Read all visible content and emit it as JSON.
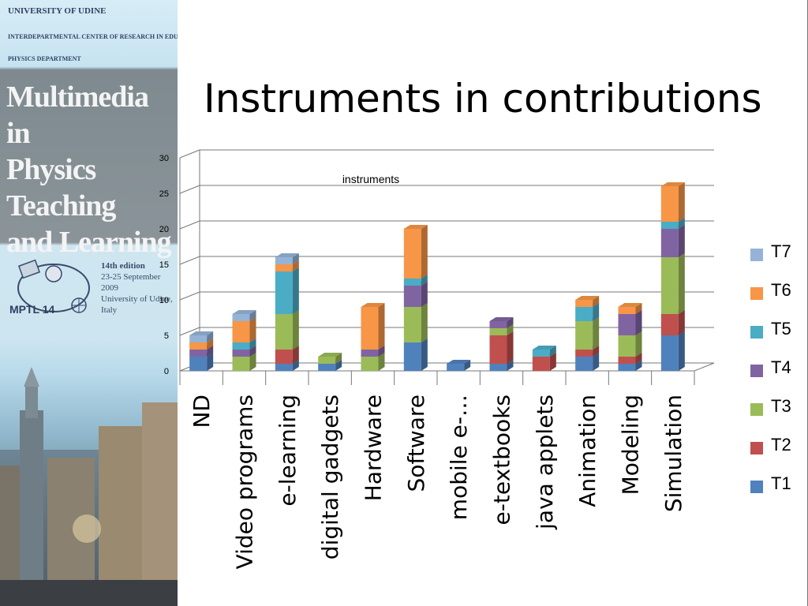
{
  "banner": {
    "university": "UNIVERSITY OF UDINE",
    "center": "INTERDEPARTMENTAL CENTER OF RESEARCH IN EDUCATION",
    "department": "PHYSICS DEPARTMENT",
    "title_lines": [
      "Multimedia in",
      "Physics Teaching",
      "and Learning"
    ],
    "logo_text": "MPTL 14",
    "edition": "14th edition",
    "dates": "23-25 September 2009",
    "place": "University of Udine, Italy"
  },
  "slide_title": "Instruments in contributions",
  "chart_data": {
    "type": "bar",
    "stacked": true,
    "three_d": true,
    "title": "instruments",
    "xlabel": "",
    "ylabel": "",
    "ylim": [
      0,
      30
    ],
    "yticks": [
      0,
      5,
      10,
      15,
      20,
      25,
      30
    ],
    "grid": true,
    "legend_position": "right",
    "categories": [
      "ND",
      "Video programs",
      "e-learning",
      "digital gadgets",
      "Hardware",
      "Software",
      "mobile e-…",
      "e-textbooks",
      "java applets",
      "Animation",
      "Modeling",
      "Simulation"
    ],
    "series": [
      {
        "name": "T1",
        "color": "#4f81bd",
        "values": [
          2,
          0,
          1,
          1,
          0,
          4,
          1,
          1,
          0,
          2,
          1,
          5
        ]
      },
      {
        "name": "T2",
        "color": "#c0504d",
        "values": [
          0,
          0,
          2,
          0,
          0,
          0,
          0,
          4,
          2,
          1,
          1,
          3
        ]
      },
      {
        "name": "T3",
        "color": "#9bbb59",
        "values": [
          0,
          2,
          5,
          1,
          2,
          5,
          0,
          1,
          0,
          4,
          3,
          8
        ]
      },
      {
        "name": "T4",
        "color": "#8064a2",
        "values": [
          1,
          1,
          0,
          0,
          1,
          3,
          0,
          1,
          0,
          0,
          3,
          4
        ]
      },
      {
        "name": "T5",
        "color": "#4bacc6",
        "values": [
          0,
          1,
          6,
          0,
          0,
          1,
          0,
          0,
          1,
          2,
          0,
          1
        ]
      },
      {
        "name": "T6",
        "color": "#f79646",
        "values": [
          1,
          3,
          1,
          0,
          6,
          7,
          0,
          0,
          0,
          1,
          1,
          5
        ]
      },
      {
        "name": "T7",
        "color": "#95b3d7",
        "values": [
          1,
          1,
          1,
          0,
          0,
          0,
          0,
          0,
          0,
          0,
          0,
          0
        ]
      }
    ]
  },
  "legend_order": [
    "T7",
    "T6",
    "T5",
    "T4",
    "T3",
    "T2",
    "T1"
  ]
}
